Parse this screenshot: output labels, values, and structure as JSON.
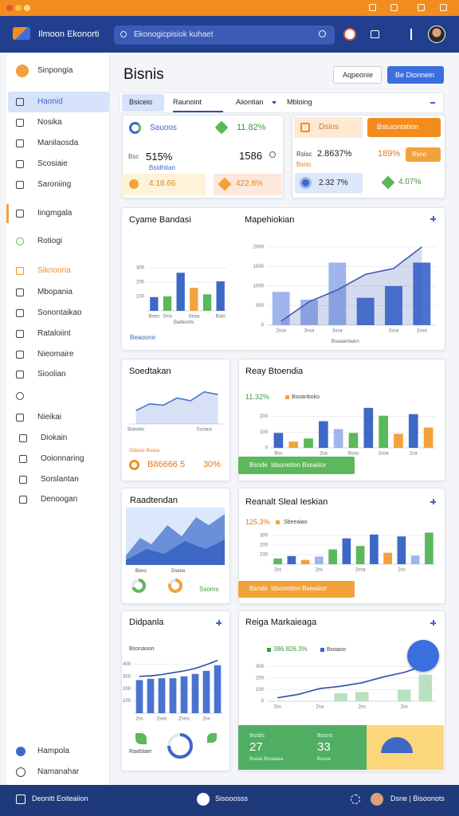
{
  "header": {
    "app_name": "Ilmoon Ekonorti",
    "search": "Ekonogicpisiok kuhaet"
  },
  "sidebar": {
    "brand": "Sinpongia",
    "items": [
      "Haonid",
      "Nosika",
      "Manilaosda",
      "Scosiaie",
      "Saroniing",
      "Iingmgala",
      "Rotiogi",
      "Siknooria",
      "Mbopania",
      "Sonontaikao",
      "Rataloiint",
      "Nieomaire",
      "Sioolian",
      "Nieikai",
      "Diokain",
      "Ooionnaring",
      "Sorslantan",
      "Denoogan"
    ],
    "footer_items": [
      "Hampola",
      "Namanahar"
    ]
  },
  "page": {
    "title": "Bisnis",
    "buttons": [
      "Aqpeonie",
      "Be Dionnein"
    ],
    "tabs": [
      "Bsiceio",
      "Raunoint",
      "Aiiontian",
      "Mbloing"
    ]
  },
  "kpi_left": {
    "label": "Sauoos",
    "change": "11.82%",
    "v1_prefix": "Bsc",
    "v1": "515%",
    "v1_sub": "Bsidhitan",
    "v2": "1586",
    "b1": "4.18.66",
    "b2": "422.8%"
  },
  "kpi_right": {
    "label": "Dsios",
    "button": "Bstuiontation",
    "t1_prefix": "Rsisc",
    "t1": "2.8637%",
    "t2": "189%",
    "t3": "Bsno",
    "t4": "Bsno",
    "b1": "2.32 7%",
    "b2": "4.07%"
  },
  "panels": [
    {
      "title": "Cyame Bandasi",
      "x_label": "Badeonts",
      "link": "Beaoone",
      "chart": {
        "categories": [
          "Beeo",
          "Snis",
          null,
          "Seaa",
          null,
          "Baio"
        ],
        "ylim": [
          0,
          400
        ],
        "yticks": [
          100,
          200,
          300
        ],
        "series": [
          {
            "type": "bar",
            "colors": [
              "#3d68c6",
              "#5cb85c",
              "#3d68c6",
              "#f2a23a",
              "#5cb85c",
              "#3d68c6"
            ],
            "values": [
              95,
              100,
              265,
              160,
              115,
              205
            ]
          }
        ]
      }
    },
    {
      "title": "Mapehiokian",
      "x_label": "Bsaaanitaion",
      "chart": {
        "categories": [
          "2ssa",
          "3ssa",
          "3ssa",
          null,
          "2ssa",
          "2ssa"
        ],
        "ylim": [
          0,
          2100
        ],
        "yticks": [
          0,
          500,
          1000,
          1500,
          2000
        ],
        "series": [
          {
            "type": "bar",
            "colors": [
              "#9fb5ec",
              "#9fb5ec",
              "#9fb5ec",
              "#4a73d0",
              "#4a73d0",
              "#4a73d0"
            ],
            "values": [
              850,
              650,
              1600,
              700,
              1000,
              1600
            ]
          },
          {
            "type": "area",
            "color": "#3d5cb8",
            "values": [
              100,
              600,
              900,
              1300,
              1450,
              2000
            ]
          }
        ]
      }
    },
    {
      "title": "Soedtakan",
      "note": "Ssbsos Bsosa",
      "stat": "B86666 5",
      "pct": "30%",
      "chart": {
        "categories": [
          "Bsbsitio",
          null,
          null,
          null,
          null,
          "Ssoiaio",
          null
        ],
        "ylim": [
          0,
          100
        ],
        "series": [
          {
            "type": "area",
            "color": "#4a73d0",
            "values": [
              30,
              45,
              42,
              58,
              52,
              72,
              66
            ]
          }
        ]
      }
    },
    {
      "title": "Reay Btoendia",
      "legend": [
        "11.32%",
        "Bsoanboko"
      ],
      "button": "Bsnde  Idsonetion Bssaiiior",
      "chart": {
        "categories": [
          "Bss",
          null,
          null,
          "2sa",
          null,
          "Bsso",
          null,
          "2ssa",
          null,
          "2sa",
          null
        ],
        "ylim": [
          0,
          300
        ],
        "yticks": [
          0,
          100,
          200
        ],
        "series": [
          {
            "type": "bar",
            "colors": [
              "#3d68c6",
              "#f2a23a",
              "#5cb85c",
              "#3d68c6",
              "#9fb5ec",
              "#5cb85c",
              "#3d68c6",
              "#5cb85c",
              "#f2a23a",
              "#3d68c6",
              "#f2a23a"
            ],
            "values": [
              95,
              40,
              60,
              170,
              120,
              95,
              255,
              205,
              90,
              215,
              130
            ]
          }
        ]
      }
    },
    {
      "title": "Raadtendan",
      "labels": [
        "Bsno",
        "Dsono"
      ],
      "stat": "Ssoms",
      "donuts": [
        70,
        80
      ]
    },
    {
      "title": "Reanalt Sleal Ieskian",
      "legend": [
        "125.3%",
        "Sbeeaiao"
      ],
      "button": "Bsnde  Idsonetion Bseaiiior",
      "chart": {
        "categories": [
          "2ss",
          null,
          null,
          "2ss",
          null,
          null,
          "2ssa",
          null,
          null,
          "2ss",
          null,
          null
        ],
        "ylim": [
          0,
          400
        ],
        "yticks": [
          100,
          200,
          300
        ],
        "series": [
          {
            "type": "bar",
            "colors": [
              "#5cb85c",
              "#3d68c6",
              "#f2a23a",
              "#9fb5ec",
              "#5cb85c",
              "#3d68c6",
              "#5cb85c",
              "#3d68c6",
              "#f2a23a",
              "#3d68c6",
              "#9fb5ec",
              "#5cb85c"
            ],
            "values": [
              60,
              85,
              45,
              80,
              155,
              270,
              190,
              310,
              120,
              290,
              90,
              330
            ]
          }
        ]
      }
    },
    {
      "title": "Didpanla",
      "legend": "Bsonaoon",
      "icons_label": "Raeblaer",
      "donut": 75,
      "chart": {
        "categories": [
          "2ss",
          null,
          "2sso",
          null,
          "Zsiss",
          null,
          "2ss",
          null
        ],
        "ylim": [
          0,
          500
        ],
        "yticks": [
          100,
          200,
          300,
          400
        ],
        "series": [
          {
            "type": "bar",
            "color": "#4a73d0",
            "values": [
              270,
              280,
              285,
              285,
              300,
              320,
              345,
              390
            ]
          },
          {
            "type": "line",
            "color": "#2f4fa8",
            "values": [
              300,
              305,
              315,
              330,
              345,
              365,
              395,
              430
            ]
          }
        ]
      }
    },
    {
      "title": "Reiga Markaieaga",
      "legend": [
        "386.826.3%",
        "Bsoaoo"
      ],
      "stats": [
        {
          "label": "Bssbs",
          "value": "27",
          "sub": "Bsoas Bsoaaea"
        },
        {
          "label": "Bsons",
          "value": "33",
          "sub": "Bsosa"
        }
      ],
      "chart": {
        "categories": [
          "2ss",
          null,
          "2sa",
          null,
          "2ss",
          null,
          "2ss",
          null
        ],
        "ylim": [
          0,
          400
        ],
        "yticks": [
          0,
          100,
          200,
          300
        ],
        "series": [
          {
            "type": "bar",
            "color": "#b9e0c0",
            "values": [
              null,
              null,
              null,
              70,
              80,
              null,
              100,
              230
            ]
          },
          {
            "type": "line",
            "color": "#2f4fa8",
            "values": [
              30,
              60,
              110,
              130,
              160,
              210,
              250,
              310
            ]
          }
        ]
      }
    }
  ],
  "footer": {
    "left": "Deonitt Eoiteaiion",
    "center": "Sisooosss",
    "right": "Dsne | Bisoonots"
  }
}
